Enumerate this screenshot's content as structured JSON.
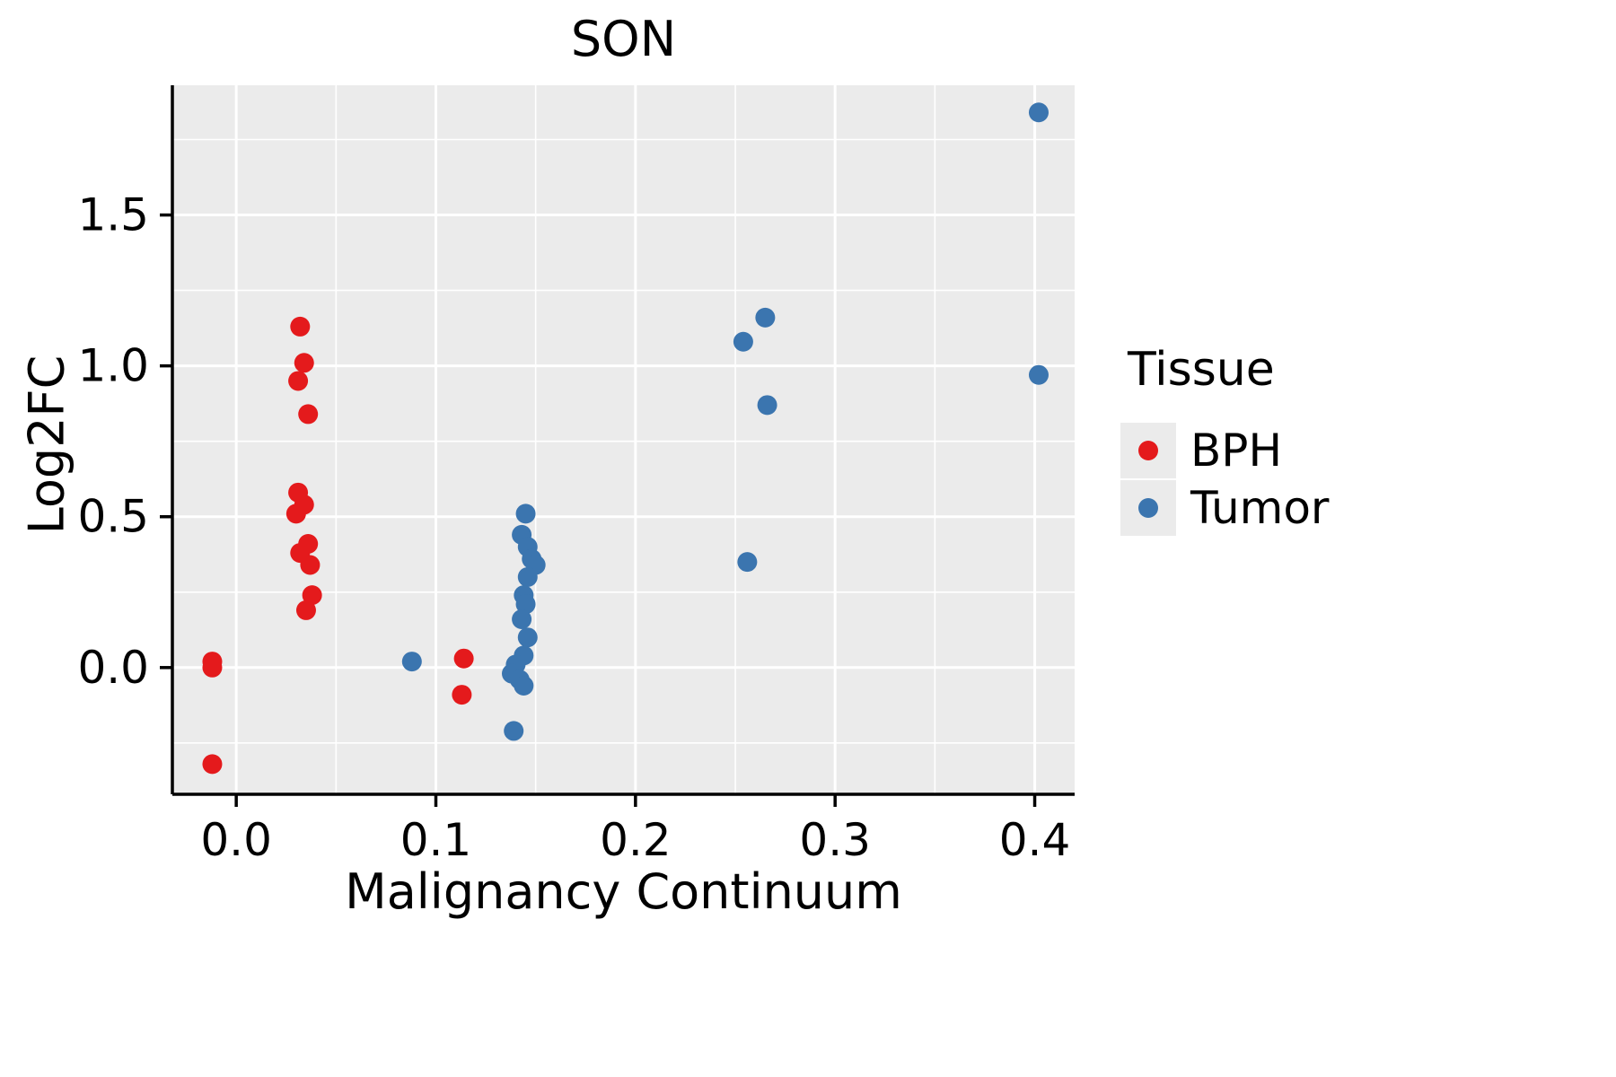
{
  "title": "SON",
  "legend": {
    "title": "Tissue",
    "entries": [
      {
        "label": "BPH",
        "color": "#E41A1C"
      },
      {
        "label": "Tumor",
        "color": "#3B75AF"
      }
    ]
  },
  "chart_data": {
    "type": "scatter",
    "title": "SON",
    "xlabel": "Malignancy Continuum",
    "ylabel": "Log2FC",
    "xlim": [
      -0.032,
      0.42
    ],
    "ylim": [
      -0.42,
      1.93
    ],
    "xticks": [
      0.0,
      0.1,
      0.2,
      0.3,
      0.4
    ],
    "xtick_labels": [
      "0.0",
      "0.1",
      "0.2",
      "0.3",
      "0.4"
    ],
    "yticks": [
      0.0,
      0.5,
      1.0,
      1.5
    ],
    "ytick_labels": [
      "0.0",
      "0.5",
      "1.0",
      "1.5"
    ],
    "grid": true,
    "panel_background": "#EBEBEB",
    "grid_color": "#FFFFFF",
    "legend_position": "right",
    "legend_title": "Tissue",
    "series": [
      {
        "name": "BPH",
        "color": "#E41A1C",
        "points": [
          [
            -0.012,
            0.02
          ],
          [
            -0.012,
            0.0
          ],
          [
            -0.012,
            -0.32
          ],
          [
            0.032,
            1.13
          ],
          [
            0.034,
            1.01
          ],
          [
            0.031,
            0.95
          ],
          [
            0.036,
            0.84
          ],
          [
            0.031,
            0.58
          ],
          [
            0.034,
            0.54
          ],
          [
            0.03,
            0.51
          ],
          [
            0.036,
            0.41
          ],
          [
            0.032,
            0.38
          ],
          [
            0.037,
            0.34
          ],
          [
            0.038,
            0.24
          ],
          [
            0.035,
            0.19
          ],
          [
            0.114,
            0.03
          ],
          [
            0.113,
            -0.09
          ]
        ]
      },
      {
        "name": "Tumor",
        "color": "#3B75AF",
        "points": [
          [
            0.088,
            0.02
          ],
          [
            0.145,
            0.51
          ],
          [
            0.143,
            0.44
          ],
          [
            0.146,
            0.4
          ],
          [
            0.148,
            0.36
          ],
          [
            0.15,
            0.34
          ],
          [
            0.146,
            0.3
          ],
          [
            0.144,
            0.24
          ],
          [
            0.145,
            0.21
          ],
          [
            0.143,
            0.16
          ],
          [
            0.146,
            0.1
          ],
          [
            0.144,
            0.04
          ],
          [
            0.14,
            0.01
          ],
          [
            0.138,
            -0.02
          ],
          [
            0.142,
            -0.04
          ],
          [
            0.144,
            -0.06
          ],
          [
            0.139,
            -0.21
          ],
          [
            0.254,
            1.08
          ],
          [
            0.265,
            1.16
          ],
          [
            0.266,
            0.87
          ],
          [
            0.256,
            0.35
          ],
          [
            0.402,
            1.84
          ],
          [
            0.402,
            0.97
          ]
        ]
      }
    ]
  }
}
